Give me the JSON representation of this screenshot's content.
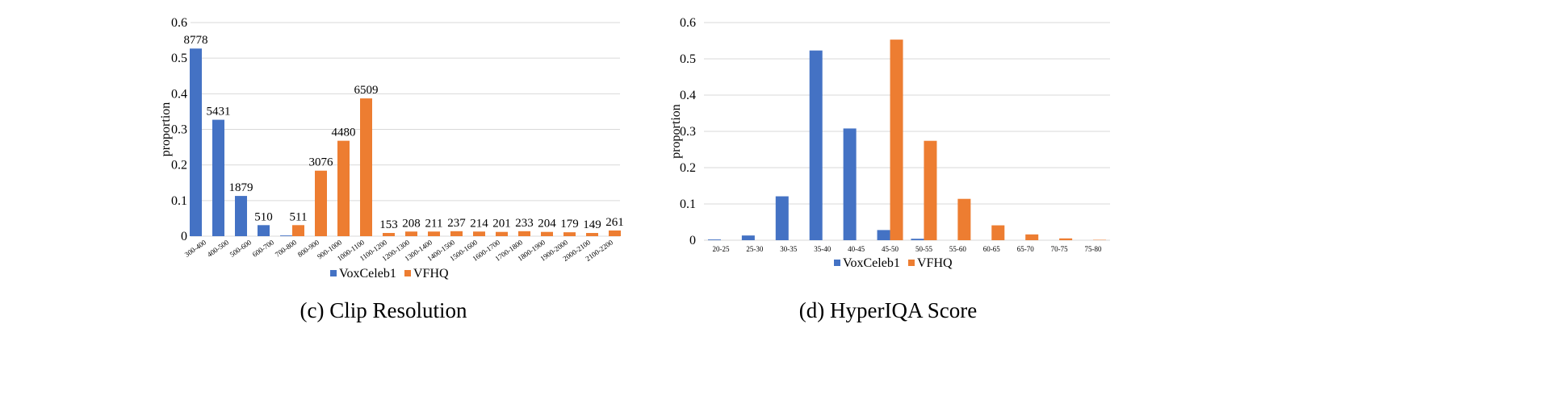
{
  "chart_data": [
    {
      "type": "bar",
      "caption": "(c) Clip Resolution",
      "ylabel": "proportion",
      "ylim": [
        0,
        0.6
      ],
      "yticks": [
        "0",
        "0.1",
        "0.2",
        "0.3",
        "0.4",
        "0.5",
        "0.6"
      ],
      "grid": true,
      "legend_position": "bottom",
      "colors": {
        "VoxCeleb1": "#4472C4",
        "VFHQ": "#ED7D31"
      },
      "categories": [
        "300-400",
        "400-500",
        "500-600",
        "600-700",
        "700-800",
        "800-900",
        "900-1000",
        "1000-1100",
        "1100-1200",
        "1200-1300",
        "1300-1400",
        "1400-1500",
        "1500-1600",
        "1600-1700",
        "1700-1800",
        "1800-1900",
        "1900-2000",
        "2000-2100",
        "2100-2200"
      ],
      "series": [
        {
          "name": "VoxCeleb1",
          "values": [
            0.527,
            0.327,
            0.113,
            0.031,
            0.002,
            0,
            0,
            0,
            0,
            0,
            0,
            0,
            0,
            0,
            0,
            0,
            0,
            0,
            0
          ]
        },
        {
          "name": "VFHQ",
          "values": [
            0,
            0,
            0,
            0,
            0.031,
            0.184,
            0.268,
            0.387,
            0.009,
            0.013,
            0.013,
            0.014,
            0.013,
            0.012,
            0.014,
            0.012,
            0.011,
            0.009,
            0.016
          ]
        }
      ],
      "data_labels": [
        {
          "category_index": 0,
          "series": "VoxCeleb1",
          "text": "8778"
        },
        {
          "category_index": 1,
          "series": "VoxCeleb1",
          "text": "5431"
        },
        {
          "category_index": 2,
          "series": "VoxCeleb1",
          "text": "1879"
        },
        {
          "category_index": 3,
          "series": "VoxCeleb1",
          "text": "510"
        },
        {
          "category_index": 4,
          "series": "VFHQ",
          "text": "511"
        },
        {
          "category_index": 5,
          "series": "VFHQ",
          "text": "3076"
        },
        {
          "category_index": 6,
          "series": "VFHQ",
          "text": "4480"
        },
        {
          "category_index": 7,
          "series": "VFHQ",
          "text": "6509"
        },
        {
          "category_index": 8,
          "series": "VFHQ",
          "text": "153"
        },
        {
          "category_index": 9,
          "series": "VFHQ",
          "text": "208"
        },
        {
          "category_index": 10,
          "series": "VFHQ",
          "text": "211"
        },
        {
          "category_index": 11,
          "series": "VFHQ",
          "text": "237"
        },
        {
          "category_index": 12,
          "series": "VFHQ",
          "text": "214"
        },
        {
          "category_index": 13,
          "series": "VFHQ",
          "text": "201"
        },
        {
          "category_index": 14,
          "series": "VFHQ",
          "text": "233"
        },
        {
          "category_index": 15,
          "series": "VFHQ",
          "text": "204"
        },
        {
          "category_index": 16,
          "series": "VFHQ",
          "text": "179"
        },
        {
          "category_index": 17,
          "series": "VFHQ",
          "text": "149"
        },
        {
          "category_index": 18,
          "series": "VFHQ",
          "text": "261"
        }
      ]
    },
    {
      "type": "bar",
      "caption": "(d) HyperIQA Score",
      "ylabel": "proportion",
      "ylim": [
        0,
        0.6
      ],
      "yticks": [
        "0",
        "0.1",
        "0.2",
        "0.3",
        "0.4",
        "0.5",
        "0.6"
      ],
      "grid": true,
      "legend_position": "bottom",
      "colors": {
        "VoxCeleb1": "#4472C4",
        "VFHQ": "#ED7D31"
      },
      "categories": [
        "20-25",
        "25-30",
        "30-35",
        "35-40",
        "40-45",
        "45-50",
        "50-55",
        "55-60",
        "60-65",
        "65-70",
        "70-75",
        "75-80"
      ],
      "series": [
        {
          "name": "VoxCeleb1",
          "values": [
            0.002,
            0.013,
            0.121,
            0.523,
            0.308,
            0.028,
            0.004,
            0,
            0,
            0,
            0,
            0
          ]
        },
        {
          "name": "VFHQ",
          "values": [
            0,
            0,
            0,
            0,
            0,
            0.553,
            0.274,
            0.114,
            0.041,
            0.016,
            0.005,
            0.001
          ]
        }
      ]
    }
  ]
}
